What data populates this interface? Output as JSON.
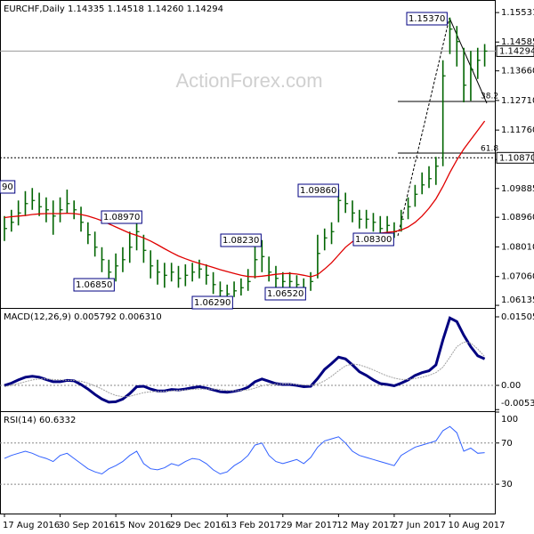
{
  "chart_data": [
    {
      "type": "ohlc",
      "title": "EURCHF,Daily  1.14335 1.14518 1.14260 1.14294",
      "watermark": "ActionForex.com",
      "ylim": [
        1.0608,
        1.1582
      ],
      "yticks": [
        1.15531,
        1.14585,
        {
          "value": 1.1366,
          "label": "1.13660"
        },
        {
          "value": 1.1271,
          "label": "1.12710"
        },
        {
          "value": 1.1176,
          "label": "1.11760"
        },
        1.10815,
        1.09885,
        {
          "value": 1.0896,
          "label": "1.08960"
        },
        {
          "value": 1.0801,
          "label": "1.08010"
        },
        {
          "value": 1.0706,
          "label": "1.07060"
        },
        1.06135
      ],
      "last_price": 1.14294,
      "level": {
        "value": 1.1087,
        "label": "1.10870"
      },
      "annotations": [
        "90",
        "1.08970",
        "1.06850",
        "1.06290",
        "1.08230",
        "1.06520",
        "1.09860",
        "1.08300",
        "1.15370",
        "38.2",
        "61.8"
      ],
      "color": "#006400",
      "high": [
        1.09,
        1.092,
        1.095,
        1.098,
        1.099,
        1.0975,
        1.096,
        1.095,
        1.096,
        1.0985,
        1.095,
        1.093,
        1.088,
        1.085,
        1.08,
        1.076,
        1.078,
        1.08,
        1.085,
        1.0897,
        1.084,
        1.079,
        1.076,
        1.075,
        1.075,
        1.074,
        1.0745,
        1.075,
        1.076,
        1.0745,
        1.072,
        1.069,
        1.068,
        1.069,
        1.07,
        1.073,
        1.0823,
        1.0823,
        1.077,
        1.074,
        1.072,
        1.072,
        1.071,
        1.07,
        1.072,
        1.084,
        1.086,
        1.088,
        1.0986,
        1.0975,
        1.095,
        1.092,
        1.092,
        1.091,
        1.09,
        1.09,
        1.088,
        1.092,
        1.096,
        1.1,
        1.104,
        1.106,
        1.109,
        1.14,
        1.1537,
        1.151,
        1.144,
        1.143,
        1.144,
        1.1452
      ],
      "low": [
        1.082,
        1.085,
        1.087,
        1.09,
        1.092,
        1.09,
        1.088,
        1.084,
        1.088,
        1.091,
        1.089,
        1.085,
        1.081,
        1.077,
        1.072,
        1.0685,
        1.069,
        1.072,
        1.075,
        1.079,
        1.075,
        1.07,
        1.068,
        1.067,
        1.069,
        1.067,
        1.0675,
        1.069,
        1.07,
        1.068,
        1.065,
        1.0635,
        1.0629,
        1.064,
        1.0645,
        1.066,
        1.07,
        1.072,
        1.069,
        1.067,
        1.066,
        1.066,
        1.0655,
        1.0652,
        1.066,
        1.07,
        1.079,
        1.081,
        1.088,
        1.091,
        1.088,
        1.086,
        1.086,
        1.085,
        1.084,
        1.084,
        1.083,
        1.085,
        1.089,
        1.093,
        1.097,
        1.099,
        1.1,
        1.106,
        1.142,
        1.138,
        1.1265,
        1.127,
        1.134,
        1.138
      ],
      "close": [
        1.086,
        1.088,
        1.091,
        1.094,
        1.095,
        1.093,
        1.092,
        1.09,
        1.092,
        1.094,
        1.092,
        1.088,
        1.084,
        1.08,
        1.076,
        1.072,
        1.074,
        1.076,
        1.08,
        1.085,
        1.079,
        1.074,
        1.072,
        1.071,
        1.072,
        1.07,
        1.071,
        1.072,
        1.073,
        1.071,
        1.068,
        1.066,
        1.065,
        1.066,
        1.067,
        1.069,
        1.076,
        1.077,
        1.072,
        1.07,
        1.069,
        1.069,
        1.068,
        1.067,
        1.069,
        1.078,
        1.083,
        1.085,
        1.095,
        1.094,
        1.091,
        1.089,
        1.089,
        1.088,
        1.086,
        1.087,
        1.085,
        1.089,
        1.093,
        1.097,
        1.1,
        1.102,
        1.106,
        1.135,
        1.15,
        1.146,
        1.132,
        1.137,
        1.14,
        1.14294
      ],
      "ma": {
        "color": "#e00000",
        "values": [
          1.0895,
          1.0898,
          1.09,
          1.0902,
          1.0905,
          1.0907,
          1.0908,
          1.0908,
          1.0908,
          1.0909,
          1.0908,
          1.0905,
          1.09,
          1.0893,
          1.0885,
          1.0875,
          1.0865,
          1.0855,
          1.0845,
          1.0838,
          1.083,
          1.082,
          1.0808,
          1.0795,
          1.0783,
          1.0772,
          1.0763,
          1.0755,
          1.0748,
          1.0742,
          1.0735,
          1.0728,
          1.0722,
          1.0716,
          1.071,
          1.0706,
          1.0705,
          1.0707,
          1.071,
          1.0713,
          1.0715,
          1.0716,
          1.0714,
          1.071,
          1.0705,
          1.0712,
          1.073,
          1.075,
          1.0775,
          1.08,
          1.0818,
          1.083,
          1.0838,
          1.0842,
          1.0845,
          1.0848,
          1.085,
          1.0855,
          1.0865,
          1.088,
          1.09,
          1.0925,
          1.0955,
          1.0995,
          1.104,
          1.108,
          1.1115,
          1.1145,
          1.1175,
          1.1205
        ]
      }
    },
    {
      "type": "line",
      "title": "MACD(12,26,9) 0.005792 0.006310",
      "ylim": [
        -0.00547,
        0.01681
      ],
      "yticks": [
        0.015052,
        {
          "value": 0,
          "label": "0.00"
        },
        -0.005321
      ],
      "series": [
        {
          "color": "#000080",
          "values": [
            0.0,
            0.0005,
            0.0012,
            0.0018,
            0.002,
            0.0018,
            0.0013,
            0.0008,
            0.0008,
            0.0011,
            0.001,
            0.0002,
            -0.0008,
            -0.002,
            -0.003,
            -0.0037,
            -0.0036,
            -0.003,
            -0.0018,
            -0.0003,
            -0.0002,
            -0.0008,
            -0.0012,
            -0.0012,
            -0.0009,
            -0.001,
            -0.0008,
            -0.0005,
            -0.0003,
            -0.0006,
            -0.001,
            -0.0014,
            -0.0015,
            -0.0013,
            -0.001,
            -0.0004,
            0.0008,
            0.0014,
            0.0009,
            0.0004,
            0.0002,
            0.0002,
            0.0,
            -0.0003,
            -0.0002,
            0.0015,
            0.0035,
            0.0048,
            0.0062,
            0.0058,
            0.0045,
            0.003,
            0.0022,
            0.0012,
            0.0004,
            0.0002,
            -0.0001,
            0.0005,
            0.0012,
            0.0022,
            0.0028,
            0.0032,
            0.0045,
            0.01,
            0.0148,
            0.014,
            0.011,
            0.0085,
            0.0065,
            0.0058
          ]
        },
        {
          "color": "#a0a0a0",
          "values": [
            -0.0003,
            0.0,
            0.0004,
            0.0008,
            0.0012,
            0.0014,
            0.0014,
            0.0013,
            0.0012,
            0.0011,
            0.0011,
            0.0009,
            0.0005,
            -0.0001,
            -0.0008,
            -0.0016,
            -0.0022,
            -0.0025,
            -0.0024,
            -0.002,
            -0.0016,
            -0.0014,
            -0.0013,
            -0.0013,
            -0.0012,
            -0.0011,
            -0.001,
            -0.0009,
            -0.0008,
            -0.0008,
            -0.0008,
            -0.0009,
            -0.0011,
            -0.0012,
            -0.0011,
            -0.001,
            -0.0006,
            -0.0001,
            0.0002,
            0.0003,
            0.0003,
            0.0003,
            0.0002,
            0.0001,
            0.0,
            0.0003,
            0.001,
            0.002,
            0.0032,
            0.0043,
            0.0047,
            0.0045,
            0.004,
            0.0034,
            0.0027,
            0.0021,
            0.0016,
            0.0013,
            0.0013,
            0.0015,
            0.0018,
            0.0022,
            0.0028,
            0.004,
            0.0062,
            0.0085,
            0.0095,
            0.0093,
            0.008,
            0.0063
          ]
        }
      ]
    },
    {
      "type": "line",
      "title": "RSI(14) 60.6332",
      "ylim": [
        1.6,
        100
      ],
      "yticks": [
        100,
        70,
        30
      ],
      "categories": [
        "17 Aug 2016",
        null,
        null,
        null,
        null,
        null,
        null,
        null,
        "30 Sep 2016",
        null,
        null,
        null,
        null,
        null,
        null,
        null,
        "15 Nov 2016",
        null,
        null,
        null,
        null,
        null,
        null,
        null,
        "29 Dec 2016",
        null,
        null,
        null,
        null,
        null,
        null,
        null,
        "13 Feb 2017",
        null,
        null,
        null,
        null,
        null,
        null,
        null,
        "29 Mar 2017",
        null,
        null,
        null,
        null,
        null,
        null,
        null,
        "12 May 2017",
        null,
        null,
        null,
        null,
        null,
        null,
        null,
        "27 Jun 2017",
        null,
        null,
        null,
        null,
        null,
        null,
        null,
        "10 Aug 2017",
        null,
        null,
        null,
        null,
        null
      ],
      "series": [
        {
          "color": "#3060ff",
          "values": [
            55,
            58,
            60,
            62,
            60,
            57,
            55,
            52,
            58,
            60,
            55,
            50,
            45,
            42,
            40,
            45,
            48,
            52,
            58,
            62,
            50,
            45,
            44,
            46,
            50,
            48,
            52,
            55,
            54,
            50,
            44,
            40,
            42,
            48,
            52,
            58,
            68,
            70,
            58,
            52,
            50,
            52,
            54,
            50,
            56,
            66,
            72,
            74,
            76,
            70,
            62,
            58,
            56,
            54,
            52,
            50,
            48,
            58,
            62,
            66,
            68,
            70,
            72,
            82,
            86,
            80,
            62,
            65,
            60,
            60.6332
          ]
        }
      ]
    }
  ]
}
